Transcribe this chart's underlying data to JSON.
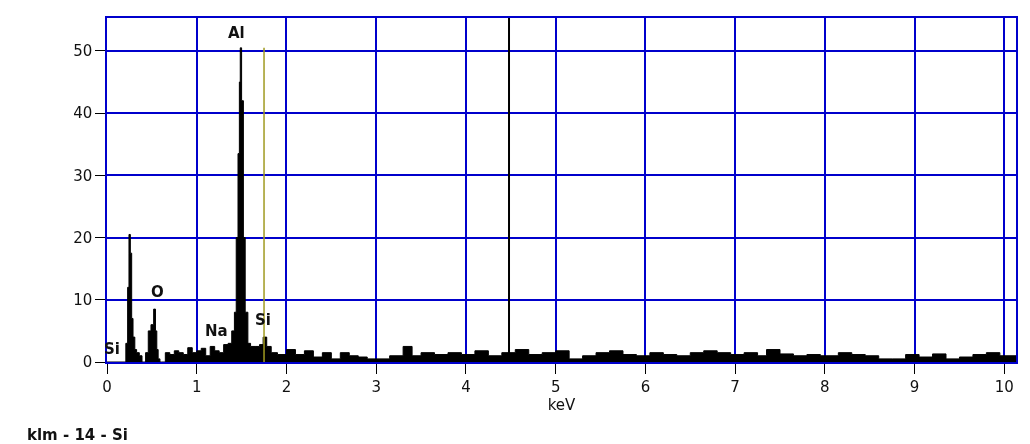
{
  "chart_data": {
    "type": "area",
    "xlabel": "keV",
    "x": [
      0.0,
      0.19,
      0.21,
      0.23,
      0.245,
      0.26,
      0.275,
      0.29,
      0.31,
      0.33,
      0.36,
      0.39,
      0.41,
      0.43,
      0.46,
      0.49,
      0.52,
      0.54,
      0.555,
      0.57,
      0.59,
      0.61,
      0.65,
      0.7,
      0.75,
      0.8,
      0.85,
      0.9,
      0.95,
      1.0,
      1.05,
      1.1,
      1.15,
      1.2,
      1.25,
      1.3,
      1.35,
      1.39,
      1.42,
      1.44,
      1.46,
      1.475,
      1.485,
      1.5,
      1.52,
      1.54,
      1.57,
      1.6,
      1.65,
      1.7,
      1.74,
      1.78,
      1.83,
      1.9,
      2.0,
      2.1,
      2.2,
      2.3,
      2.4,
      2.5,
      2.6,
      2.7,
      2.8,
      2.9,
      3.0,
      3.15,
      3.3,
      3.4,
      3.5,
      3.65,
      3.8,
      3.95,
      4.1,
      4.25,
      4.4,
      4.55,
      4.7,
      4.85,
      5.0,
      5.15,
      5.3,
      5.45,
      5.6,
      5.75,
      5.9,
      6.05,
      6.2,
      6.35,
      6.5,
      6.65,
      6.8,
      6.95,
      7.1,
      7.25,
      7.35,
      7.5,
      7.65,
      7.8,
      7.95,
      8.15,
      8.3,
      8.45,
      8.6,
      8.75,
      8.9,
      9.05,
      9.2,
      9.35,
      9.5,
      9.65,
      9.8,
      9.95,
      10.13
    ],
    "values": [
      0,
      0,
      3,
      12,
      20.5,
      17.5,
      7,
      4,
      2,
      1.5,
      1,
      0,
      0,
      1.5,
      5,
      6,
      8.5,
      5,
      2,
      0.5,
      0,
      0,
      1.5,
      1.2,
      1.8,
      1.5,
      1.2,
      2.3,
      1.5,
      1.8,
      2.2,
      1,
      2.5,
      1.8,
      1.5,
      2.8,
      3,
      5,
      8,
      20,
      33.5,
      45,
      50.5,
      42,
      20,
      8,
      3,
      2.5,
      2.5,
      2.8,
      4,
      2.5,
      1.5,
      1.2,
      2,
      1.2,
      1.8,
      0.8,
      1.5,
      0.5,
      1.5,
      1,
      0.8,
      0.5,
      0.5,
      1,
      2.5,
      1,
      1.5,
      1.2,
      1.5,
      1.2,
      1.8,
      1,
      1.5,
      2,
      1.2,
      1.5,
      1.8,
      0.5,
      1,
      1.5,
      1.8,
      1.2,
      1,
      1.5,
      1.2,
      1,
      1.5,
      1.8,
      1.5,
      1.2,
      1.5,
      1,
      2,
      1.3,
      1,
      1.2,
      1,
      1.5,
      1.2,
      1,
      0.5,
      0.5,
      1.2,
      0.8,
      1.3,
      0.5,
      0.8,
      1.2,
      1.5,
      1,
      0.5
    ],
    "color": "#000000",
    "xlim": [
      0,
      10.13
    ],
    "ylim": [
      0,
      55.3
    ],
    "xticks": [
      0,
      1,
      2,
      3,
      4,
      5,
      6,
      7,
      8,
      9,
      10
    ],
    "yticks": [
      0,
      10,
      20,
      30,
      40,
      50
    ],
    "grid": true,
    "ref_lines": [
      {
        "axis": "x",
        "value": 4.48,
        "color": "#000000"
      },
      {
        "axis": "x",
        "value": 1.75,
        "color": "#a09a20"
      }
    ],
    "annotations": [
      {
        "text": "Al",
        "x": 1.485,
        "y": 50.5
      },
      {
        "text": "O",
        "x": 0.52,
        "y": 8.5
      },
      {
        "text": "Na",
        "x": 1.05,
        "y": 2.2
      },
      {
        "text": "Si",
        "x": 1.74,
        "y": 4
      },
      {
        "text": "Si",
        "x": 0.19,
        "y": 0
      },
      "klm - 14 - Si"
    ]
  }
}
